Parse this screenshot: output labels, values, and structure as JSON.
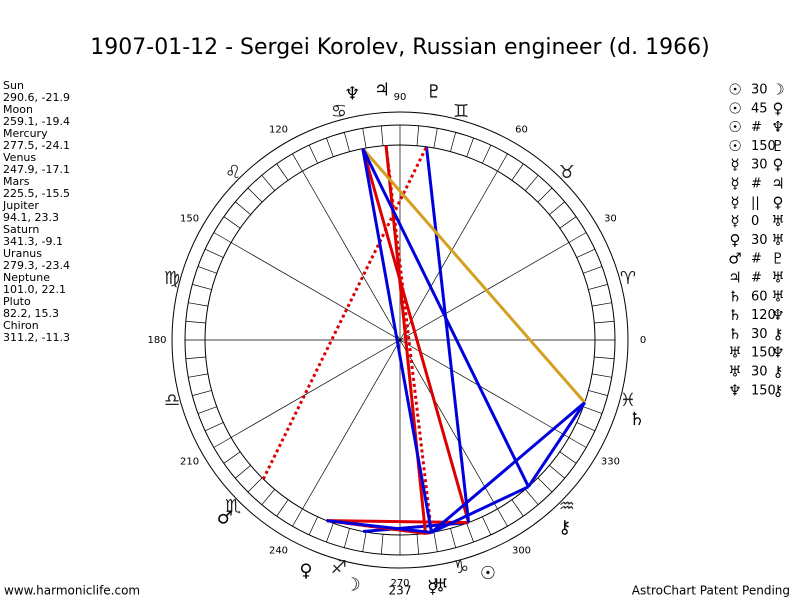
{
  "title": "1907-01-12 - Sergei Korolev, Russian engineer (d. 1966)",
  "planets": [
    {
      "name": "Sun",
      "glyph": "☉",
      "coords": "290.6, -21.9"
    },
    {
      "name": "Moon",
      "glyph": "☽",
      "coords": "259.1, -19.4"
    },
    {
      "name": "Mercury",
      "glyph": "☿",
      "coords": "277.5, -24.1"
    },
    {
      "name": "Venus",
      "glyph": "♀",
      "coords": "247.9, -17.1"
    },
    {
      "name": "Mars",
      "glyph": "♂",
      "coords": "225.5, -15.5"
    },
    {
      "name": "Jupiter",
      "glyph": "♃",
      "coords": "94.1, 23.3"
    },
    {
      "name": "Saturn",
      "glyph": "♄",
      "coords": "341.3, -9.1"
    },
    {
      "name": "Uranus",
      "glyph": "♅",
      "coords": "279.3, -23.4"
    },
    {
      "name": "Neptune",
      "glyph": "♆",
      "coords": "101.0, 22.1"
    },
    {
      "name": "Pluto",
      "glyph": "♇",
      "coords": "82.2, 15.3"
    },
    {
      "name": "Chiron",
      "glyph": "⚷",
      "coords": "311.2, -11.3"
    }
  ],
  "aspects": [
    {
      "a": 0,
      "aspect": "30",
      "b": 1,
      "color": "#0000dd",
      "style": "solid"
    },
    {
      "a": 0,
      "aspect": "45",
      "b": 3,
      "color": "#dd0000",
      "style": "solid"
    },
    {
      "a": 0,
      "aspect": "#",
      "b": 8,
      "color": "#dd0000",
      "style": "solid"
    },
    {
      "a": 0,
      "aspect": "150",
      "b": 9,
      "color": "#0000dd",
      "style": "solid"
    },
    {
      "a": 2,
      "aspect": "30",
      "b": 3,
      "color": "#dd0000",
      "style": "solid"
    },
    {
      "a": 2,
      "aspect": "#",
      "b": 5,
      "color": "#dd0000",
      "style": "solid"
    },
    {
      "a": 2,
      "aspect": "||",
      "b": 3,
      "color": "#dd0000",
      "style": "dotted"
    },
    {
      "a": 2,
      "aspect": "0",
      "b": 7,
      "color": "#dd0000",
      "style": "solid"
    },
    {
      "a": 3,
      "aspect": "30",
      "b": 7,
      "color": "#0000dd",
      "style": "solid"
    },
    {
      "a": 4,
      "aspect": "#",
      "b": 9,
      "color": "#dd0000",
      "style": "dotted"
    },
    {
      "a": 5,
      "aspect": "#",
      "b": 7,
      "color": "#dd0000",
      "style": "dotted"
    },
    {
      "a": 6,
      "aspect": "60",
      "b": 7,
      "color": "#0000dd",
      "style": "solid"
    },
    {
      "a": 6,
      "aspect": "120",
      "b": 8,
      "color": "#d4a020",
      "style": "solid"
    },
    {
      "a": 6,
      "aspect": "30",
      "b": 10,
      "color": "#0000dd",
      "style": "solid"
    },
    {
      "a": 7,
      "aspect": "150",
      "b": 8,
      "color": "#0000dd",
      "style": "solid"
    },
    {
      "a": 7,
      "aspect": "30",
      "b": 10,
      "color": "#0000dd",
      "style": "solid"
    },
    {
      "a": 8,
      "aspect": "150",
      "b": 10,
      "color": "#0000dd",
      "style": "solid"
    }
  ],
  "degree_labels": [
    "0",
    "30",
    "60",
    "90",
    "120",
    "150",
    "180",
    "210",
    "240",
    "270",
    "300",
    "330"
  ],
  "signs": [
    "♈",
    "♉",
    "♊",
    "♋",
    "♌",
    "♍",
    "♎",
    "♏",
    "♐",
    "♑",
    "♒",
    "♓"
  ],
  "ascendant_label": "237",
  "footer_left": "www.harmoniclife.com",
  "footer_right": "AstroChart Patent Pending"
}
